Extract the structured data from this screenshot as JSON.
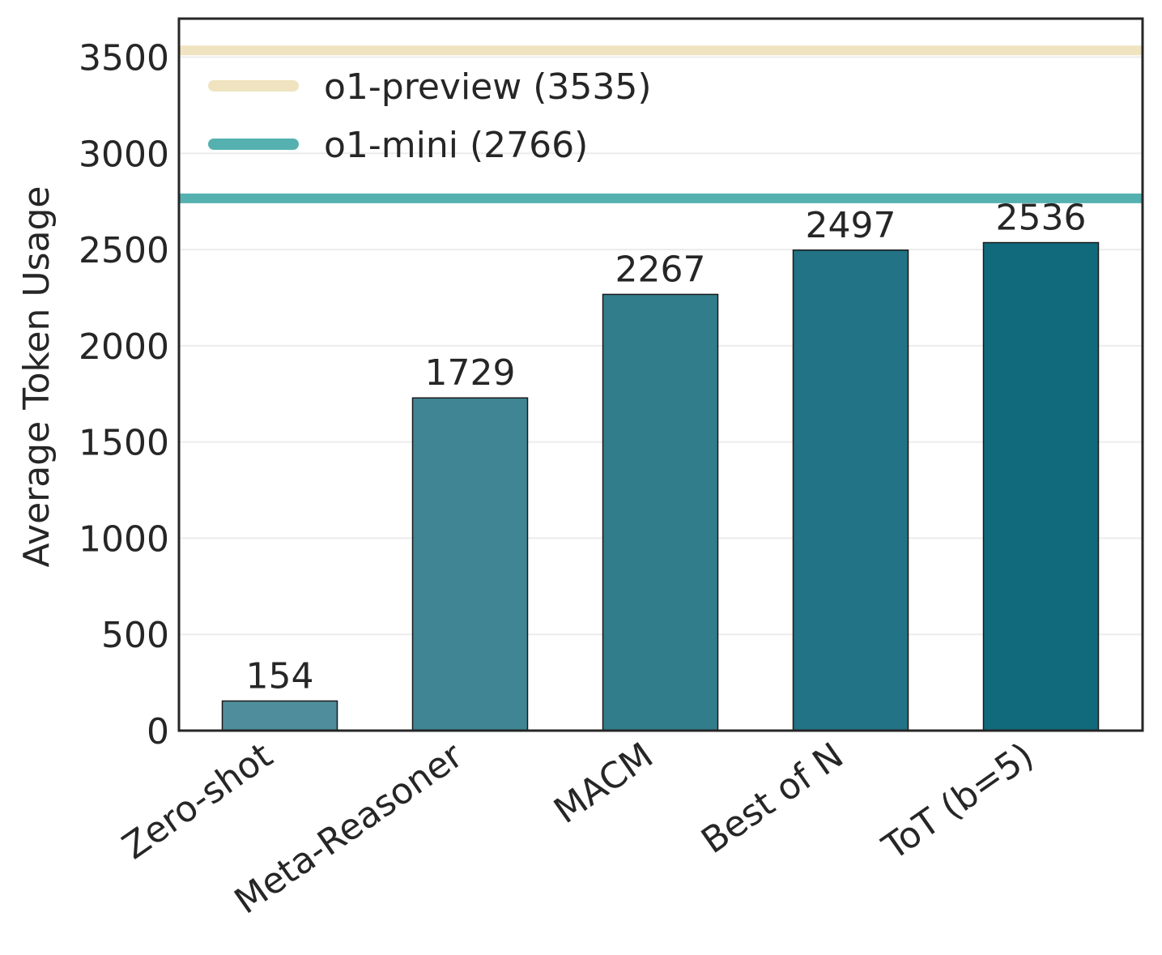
{
  "chart_data": {
    "type": "bar",
    "categories": [
      "Zero-shot",
      "Meta-Reasoner",
      "MACM",
      "Best of N",
      "ToT (b=5)"
    ],
    "values": [
      154,
      1729,
      2267,
      2497,
      2536
    ],
    "value_labels": [
      "154",
      "1729",
      "2267",
      "2497",
      "2536"
    ],
    "bar_colors": [
      "#4f8d9c",
      "#3f8594",
      "#327d8c",
      "#217385",
      "#11697c"
    ],
    "bar_edge_color": "#1a1a1a",
    "xlabel": "",
    "ylabel": "Average Token Usage",
    "ylim": [
      0,
      3700
    ],
    "yticks": [
      0,
      500,
      1000,
      1500,
      2000,
      2500,
      3000,
      3500
    ],
    "ytick_labels": [
      "0",
      "500",
      "1000",
      "1500",
      "2000",
      "2500",
      "3000",
      "3500"
    ],
    "grid": "horizontal",
    "legend_position": "top-left",
    "reference_lines": [
      {
        "label": "o1-preview (3535)",
        "value": 3535,
        "color": "#efe4bf"
      },
      {
        "label": "o1-mini (2766)",
        "value": 2766,
        "color": "#55b1b0"
      }
    ]
  }
}
